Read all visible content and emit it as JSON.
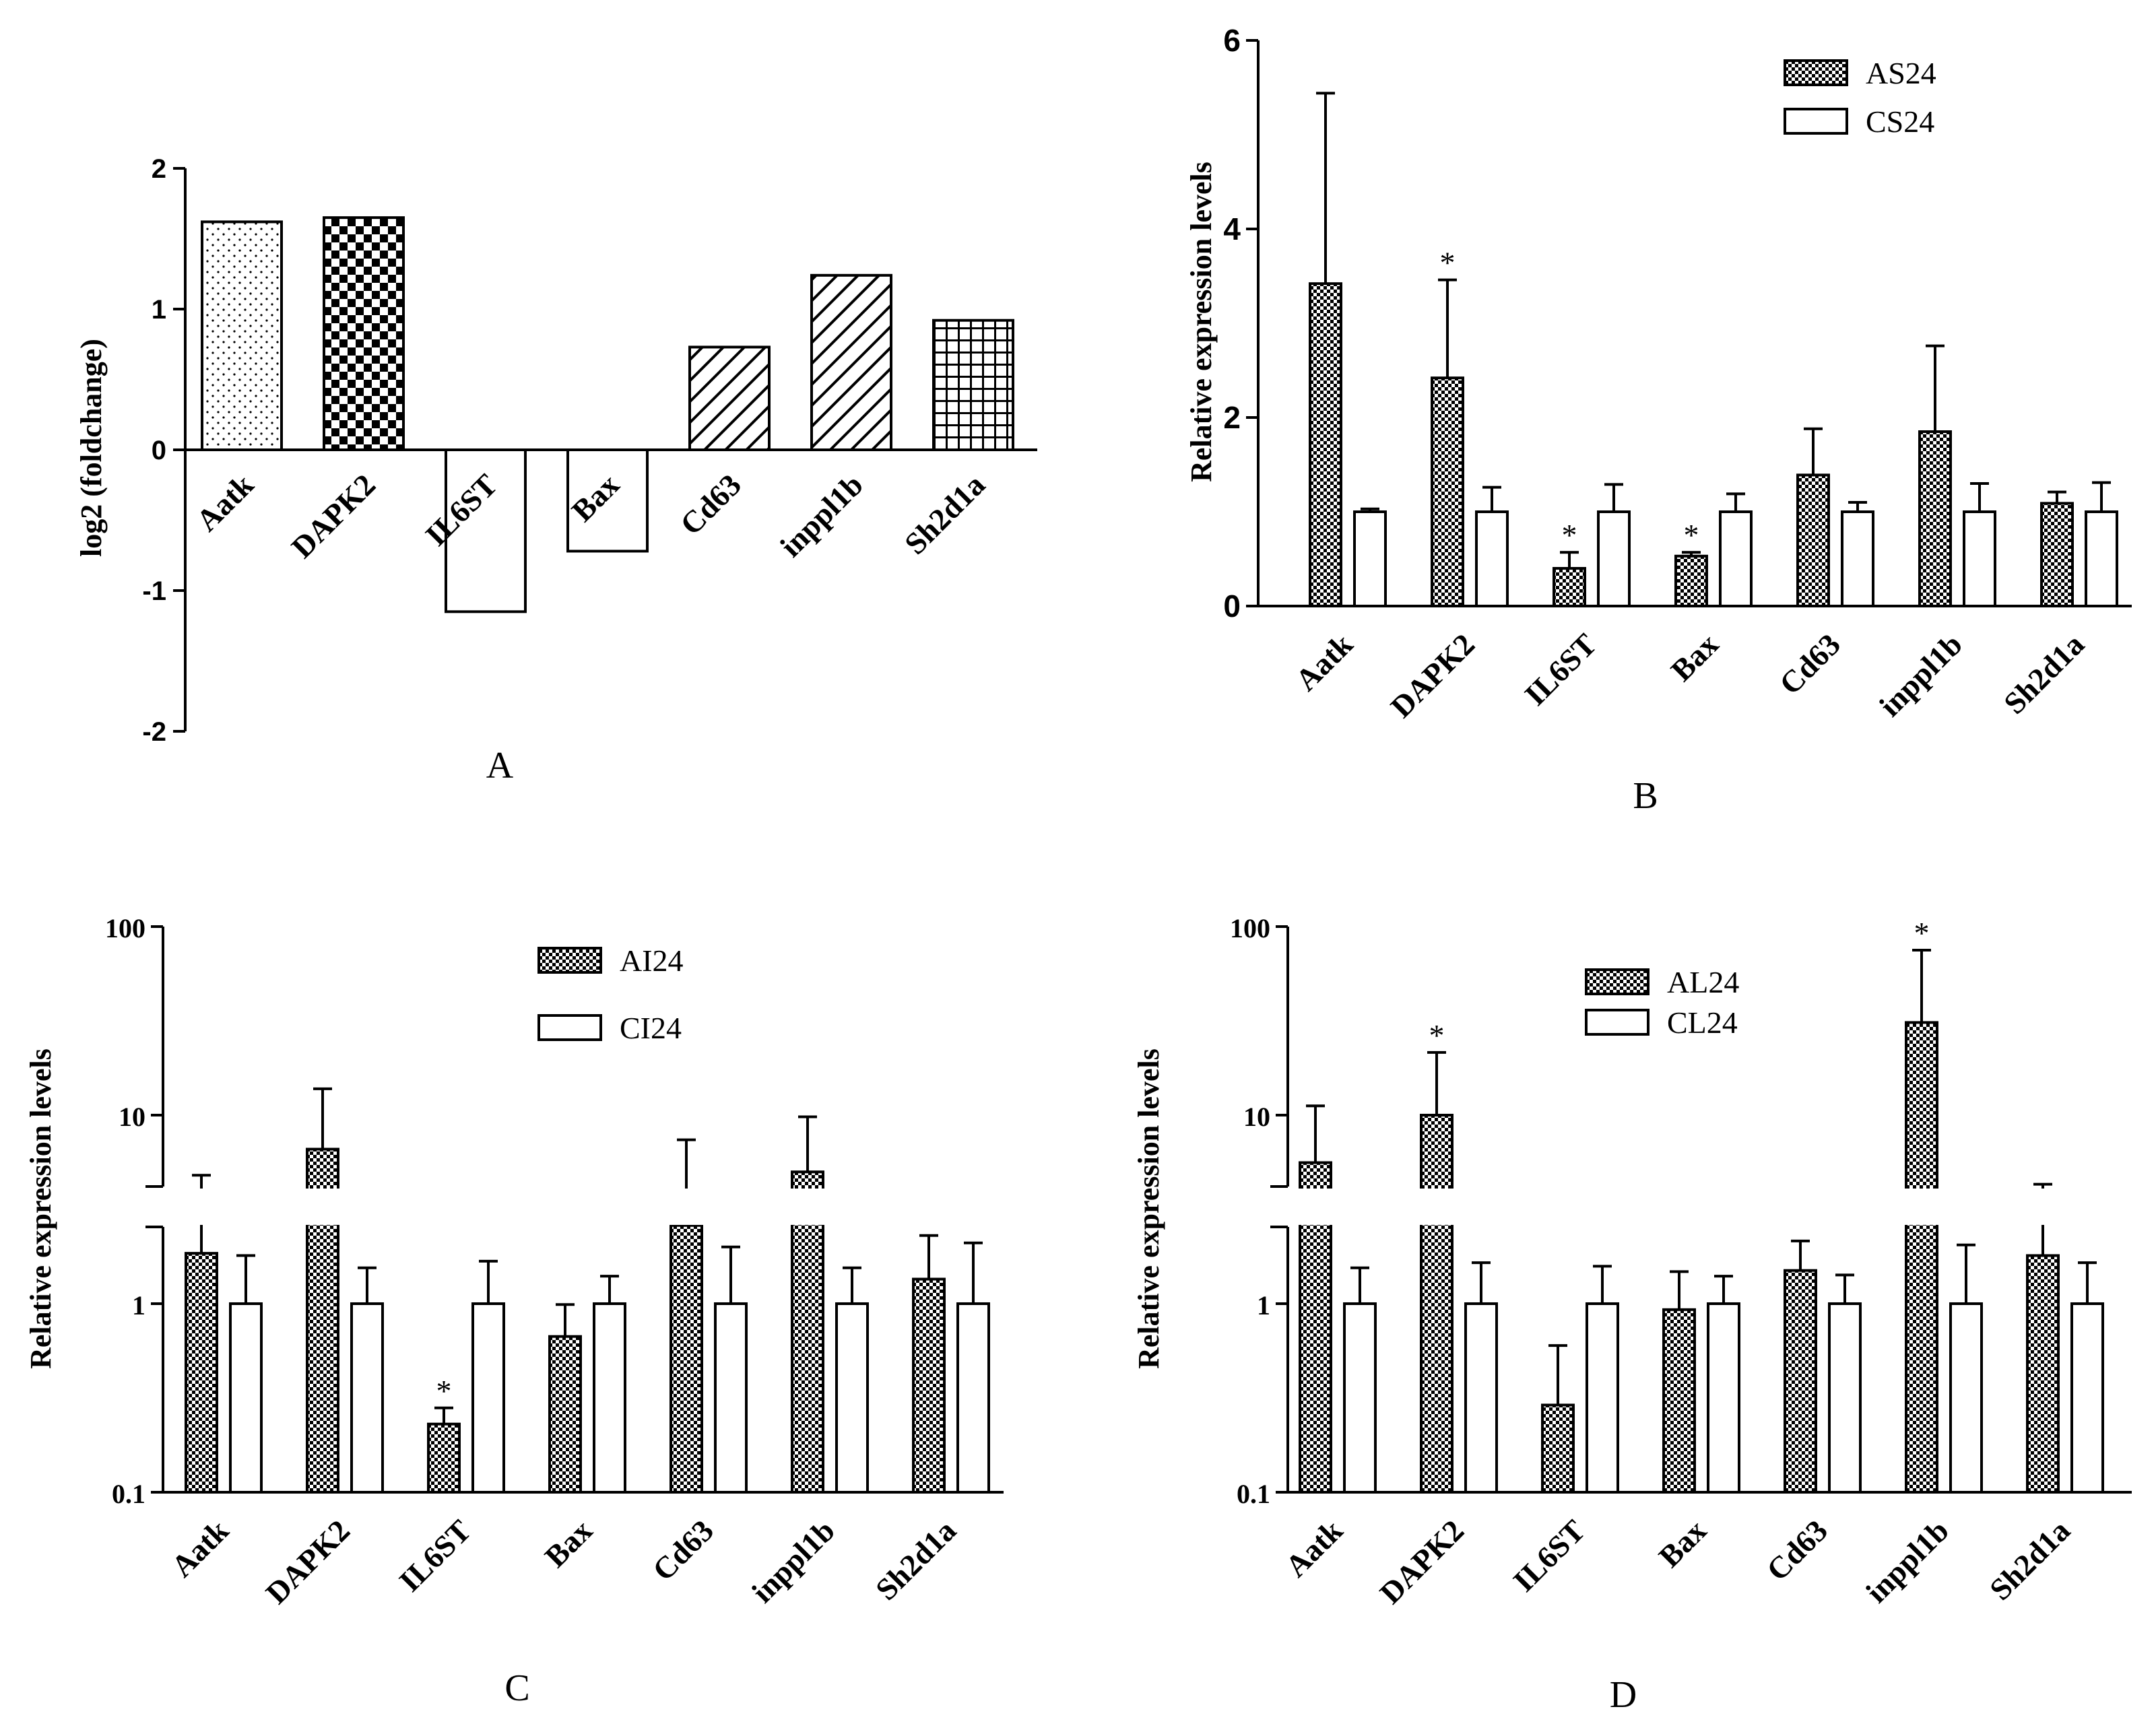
{
  "chart_data": [
    {
      "panel": "A",
      "type": "bar",
      "title": "",
      "panel_label": "A",
      "ylabel": "log2 (foldchange)",
      "xlabel": "",
      "ylim": [
        -2,
        2
      ],
      "yticks": [
        "2",
        "1",
        "0",
        "-1",
        "-2"
      ],
      "categories": [
        "Aatk",
        "DAPK2",
        "IL6ST",
        "Bax",
        "Cd63",
        "inppl1b",
        "Sh2d1a"
      ],
      "values": [
        1.62,
        1.65,
        -1.15,
        -0.72,
        0.73,
        1.24,
        0.92
      ],
      "patterns": [
        "dots",
        "checker",
        "none",
        "none",
        "diag",
        "diag",
        "grid"
      ]
    },
    {
      "panel": "B",
      "type": "bar",
      "panel_label": "B",
      "ylabel": "Relative expression levels",
      "ylim": [
        0,
        6
      ],
      "yticks": [
        "6",
        "4",
        "2",
        "0"
      ],
      "categories": [
        "Aatk",
        "DAPK2",
        "IL6ST",
        "Bax",
        "Cd63",
        "inppl1b",
        "Sh2d1a"
      ],
      "legend": [
        "AS24",
        "CS24"
      ],
      "series": [
        {
          "name": "AS24",
          "values": [
            3.42,
            2.42,
            0.4,
            0.53,
            1.39,
            1.85,
            1.09
          ],
          "errors": [
            2.02,
            1.04,
            0.17,
            0.04,
            0.49,
            0.91,
            0.12
          ]
        },
        {
          "name": "CS24",
          "values": [
            1.0,
            1.0,
            1.0,
            1.0,
            1.0,
            1.0,
            1.0
          ],
          "errors": [
            0.03,
            0.26,
            0.29,
            0.19,
            0.1,
            0.3,
            0.31
          ]
        }
      ],
      "significance": [
        "",
        "*",
        "*",
        "*",
        "",
        "",
        ""
      ]
    },
    {
      "panel": "C",
      "type": "bar",
      "panel_label": "C",
      "ylabel": "Relative expression levels",
      "yscale": "log",
      "ylim": [
        0.1,
        100
      ],
      "yticks": [
        "100",
        "10",
        "1",
        "0.1"
      ],
      "categories": [
        "Aatk",
        "DAPK2",
        "IL6ST",
        "Bax",
        "Cd63",
        "inppl1b",
        "Sh2d1a"
      ],
      "legend": [
        "AI24",
        "CI24"
      ],
      "series": [
        {
          "name": "AI24",
          "values": [
            1.85,
            6.6,
            0.23,
            0.67,
            2.6,
            5.0,
            1.35
          ],
          "errors_upper": [
            4.8,
            13.8,
            0.28,
            0.99,
            7.4,
            9.8,
            2.3
          ]
        },
        {
          "name": "CI24",
          "values": [
            1.0,
            1.0,
            1.0,
            1.0,
            1.0,
            1.0,
            1.0
          ],
          "errors_upper": [
            1.8,
            1.55,
            1.68,
            1.4,
            2.0,
            1.55,
            2.1
          ]
        }
      ],
      "significance": [
        "",
        "",
        "*",
        "",
        "",
        "",
        ""
      ]
    },
    {
      "panel": "D",
      "type": "bar",
      "panel_label": "D",
      "ylabel": "Relative expression levels",
      "yscale": "log",
      "ylim": [
        0.1,
        100
      ],
      "yticks": [
        "100",
        "10",
        "1",
        "0.1"
      ],
      "categories": [
        "Aatk",
        "DAPK2",
        "IL6ST",
        "Bax",
        "Cd63",
        "inppl1b",
        "Sh2d1a"
      ],
      "legend": [
        "AL24",
        "CL24"
      ],
      "series": [
        {
          "name": "AL24",
          "values": [
            5.6,
            10.0,
            0.29,
            0.93,
            1.5,
            31.0,
            1.8
          ],
          "errors_upper": [
            11.2,
            21.5,
            0.6,
            1.48,
            2.15,
            75.0,
            4.3
          ]
        },
        {
          "name": "CL24",
          "values": [
            1.0,
            1.0,
            1.0,
            1.0,
            1.0,
            1.0,
            1.0
          ],
          "errors_upper": [
            1.55,
            1.65,
            1.58,
            1.4,
            1.42,
            2.05,
            1.65
          ]
        }
      ],
      "significance": [
        "",
        "*",
        "",
        "",
        "",
        "*",
        ""
      ]
    }
  ]
}
